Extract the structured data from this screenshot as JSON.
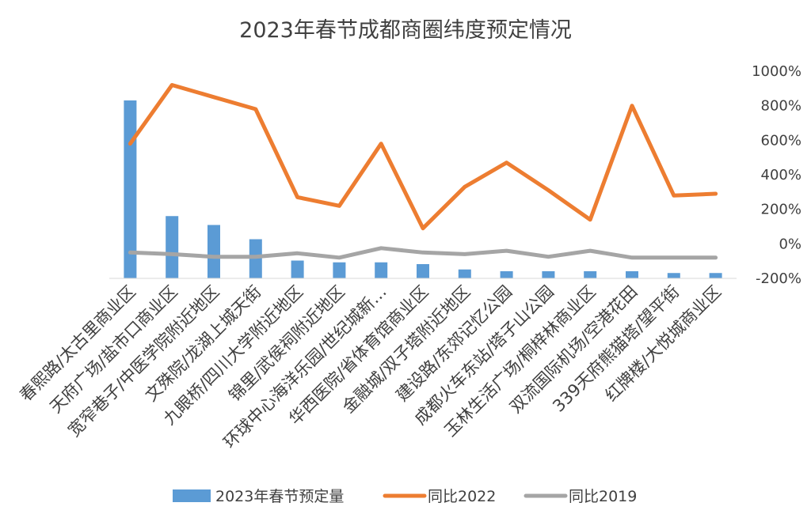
{
  "chart_data": {
    "type": "bar+line",
    "title": "2023年春节成都商圈纬度预定情况",
    "categories": [
      "春熙路/太古里商业区",
      "天府广场/盐市口商业区",
      "宽窄巷子/中医学院附近地区",
      "文殊院/龙湖上城天街",
      "九眼桥/四川大学附近地区",
      "锦里/武侯祠附近地区",
      "环球中心海洋乐园/世纪城新…",
      "华西医院/省体育馆商业区",
      "金融城/双子塔附近地区",
      "建设路/东郊记忆公园",
      "成都火车东站/塔子山公园",
      "玉林生活广场/桐梓林商业区",
      "双流国际机场/空港花田",
      "339天府熊猫塔/望平街",
      "红牌楼/大悦城商业区"
    ],
    "bar_series": {
      "name": "2023年春节预定量",
      "color": "#5b9bd5",
      "values": [
        100,
        35,
        30,
        22,
        10,
        9,
        9,
        8,
        5,
        4,
        4,
        4,
        4,
        3,
        3
      ]
    },
    "line_series": [
      {
        "name": "同比2022",
        "color": "#ed7d31",
        "values": [
          580,
          920,
          850,
          780,
          270,
          220,
          580,
          90,
          330,
          470,
          310,
          140,
          800,
          280,
          290
        ]
      },
      {
        "name": "同比2019",
        "color": "#a5a5a5",
        "values": [
          -50,
          -60,
          -75,
          -75,
          -55,
          -80,
          -25,
          -50,
          -60,
          -40,
          -75,
          -40,
          -80,
          -80,
          -80
        ]
      }
    ],
    "y2_axis": {
      "min": -200,
      "max": 1000,
      "step": 200,
      "unit": "%",
      "ticks": [
        "1000%",
        "800%",
        "600%",
        "400%",
        "200%",
        "0%",
        "-200%"
      ]
    },
    "legend": {
      "placement": "bottom",
      "entries": [
        "2023年春节预定量",
        "同比2022",
        "同比2019"
      ]
    },
    "grid": false
  }
}
